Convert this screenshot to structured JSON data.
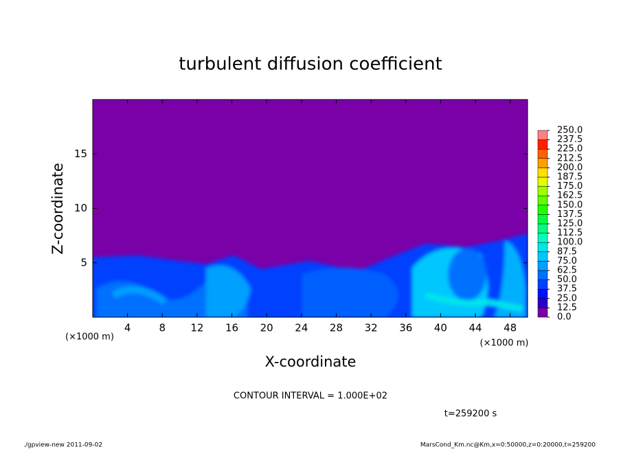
{
  "chart_data": {
    "type": "contour",
    "title": "turbulent diffusion coefficient",
    "x_label": "X-coordinate",
    "y_label": "Z-coordinate",
    "x_unit": "(×1000 m)",
    "y_unit": "(×1000 m)",
    "xlim": [
      0,
      50
    ],
    "ylim": [
      0,
      20
    ],
    "xticks": [
      4,
      8,
      12,
      16,
      20,
      24,
      28,
      32,
      36,
      40,
      44,
      48
    ],
    "yticks": [
      5,
      10,
      15
    ],
    "colorbar": {
      "levels": [
        {
          "value": 0,
          "label": "0.0"
        },
        {
          "value": 12.5,
          "label": "12.5"
        },
        {
          "value": 25,
          "label": "25.0"
        },
        {
          "value": 37.5,
          "label": "37.5"
        },
        {
          "value": 50,
          "label": "50.0"
        },
        {
          "value": 62.5,
          "label": "62.5"
        },
        {
          "value": 75,
          "label": "75.0"
        },
        {
          "value": 87.5,
          "label": "87.5"
        },
        {
          "value": 100,
          "label": "100.0"
        },
        {
          "value": 112.5,
          "label": "112.5"
        },
        {
          "value": 125,
          "label": "125.0"
        },
        {
          "value": 137.5,
          "label": "137.5"
        },
        {
          "value": 150,
          "label": "150.0"
        },
        {
          "value": 162.5,
          "label": "162.5"
        },
        {
          "value": 175,
          "label": "175.0"
        },
        {
          "value": 187.5,
          "label": "187.5"
        },
        {
          "value": 200,
          "label": "200.0"
        },
        {
          "value": 212.5,
          "label": "212.5"
        },
        {
          "value": 225,
          "label": "225.0"
        },
        {
          "value": 237.5,
          "label": "237.5"
        },
        {
          "value": 250,
          "label": "250.0"
        }
      ],
      "colors": [
        "#7a00a8",
        "#2a00c8",
        "#0010ff",
        "#0040ff",
        "#0070ff",
        "#00a0ff",
        "#00c8ff",
        "#00e8e8",
        "#00ffc0",
        "#00ff80",
        "#00ff40",
        "#20ff00",
        "#60ff00",
        "#a0ff00",
        "#e0ff00",
        "#ffe000",
        "#ffa000",
        "#ff6000",
        "#ff2000",
        "#ff8080"
      ]
    },
    "contour_interval": "CONTOUR INTERVAL = 1.000E+02",
    "time": "t=259200 s",
    "footer_left": "./gpview-new  2011-09-02",
    "footer_right": "MarsCond_Km.nc@Km,x=0:50000,z=0:20000,t=259200"
  }
}
